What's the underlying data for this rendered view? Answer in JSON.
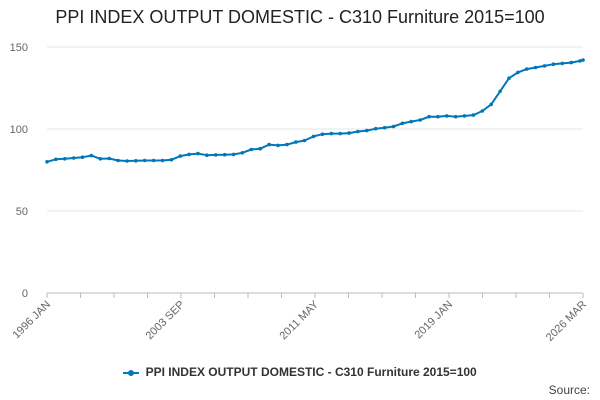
{
  "chart_data": {
    "type": "line",
    "title": "PPI INDEX OUTPUT DOMESTIC - C310 Furniture 2015=100",
    "xlabel": "",
    "ylabel": "",
    "ylim": [
      0,
      150
    ],
    "y_ticks": [
      0,
      50,
      100,
      150
    ],
    "x_tick_labels": [
      "1996 JAN",
      "2003 SEP",
      "2011 MAY",
      "2019 JAN",
      "2026 MAR"
    ],
    "grid": true,
    "legend_position": "bottom",
    "series": [
      {
        "name": "PPI INDEX OUTPUT DOMESTIC - C310 Furniture 2015=100",
        "color": "#0077bb",
        "x": [
          "1996-01",
          "1996-07",
          "1997-01",
          "1997-07",
          "1998-01",
          "1998-07",
          "1999-01",
          "1999-07",
          "2000-01",
          "2000-07",
          "2001-01",
          "2001-07",
          "2002-01",
          "2002-07",
          "2003-01",
          "2003-07",
          "2004-01",
          "2004-07",
          "2005-01",
          "2005-07",
          "2006-01",
          "2006-07",
          "2007-01",
          "2007-07",
          "2008-01",
          "2008-07",
          "2009-01",
          "2009-07",
          "2010-01",
          "2010-07",
          "2011-01",
          "2011-07",
          "2012-01",
          "2012-07",
          "2013-01",
          "2013-07",
          "2014-01",
          "2014-07",
          "2015-01",
          "2015-07",
          "2016-01",
          "2016-07",
          "2017-01",
          "2017-07",
          "2018-01",
          "2018-07",
          "2019-01",
          "2019-07",
          "2020-01",
          "2020-07",
          "2021-01",
          "2021-07",
          "2022-01",
          "2022-07",
          "2023-01",
          "2023-07",
          "2024-01",
          "2024-07",
          "2025-01",
          "2025-07",
          "2026-01",
          "2026-03"
        ],
        "values": [
          80,
          81.5,
          81.8,
          82.3,
          82.8,
          83.8,
          81.8,
          82,
          80.8,
          80.5,
          80.6,
          80.8,
          80.8,
          80.8,
          81.2,
          83.5,
          84.5,
          85,
          84,
          84.2,
          84.3,
          84.5,
          85.5,
          87.5,
          88,
          90.5,
          90,
          90.5,
          92,
          93,
          95.5,
          96.8,
          97.2,
          97.2,
          97.5,
          98.5,
          99,
          100.2,
          100.8,
          101.5,
          103.5,
          104.5,
          105.5,
          107.5,
          107.5,
          108,
          107.5,
          108,
          108.5,
          111,
          115,
          123,
          131,
          134.5,
          136.5,
          137.5,
          138.5,
          139.5,
          140,
          140.5,
          141.5,
          142
        ]
      }
    ]
  },
  "legend": {
    "label": "PPI INDEX OUTPUT DOMESTIC - C310 Furniture 2015=100"
  },
  "credit": "Source:"
}
